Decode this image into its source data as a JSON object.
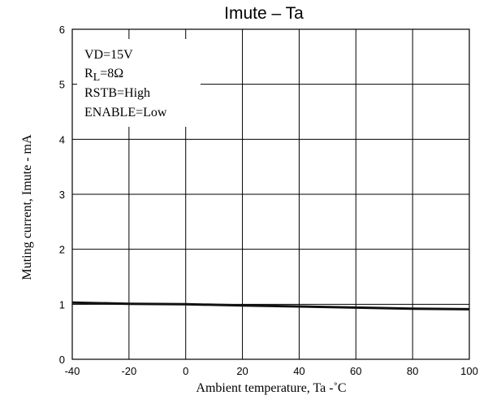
{
  "chart_data": {
    "type": "line",
    "title": "Imute – Ta",
    "xlabel": "Ambient temperature, Ta  -˚C",
    "ylabel": "Muting current, Imute  - mA",
    "xlim": [
      -40,
      100
    ],
    "ylim": [
      0,
      6
    ],
    "xticks": [
      "-40",
      "-20",
      "0",
      "20",
      "40",
      "60",
      "80",
      "100"
    ],
    "yticks": [
      "0",
      "1",
      "2",
      "3",
      "4",
      "5",
      "6"
    ],
    "grid": true,
    "conditions": {
      "vd": "VD=15V",
      "rl_main": "R",
      "rl_sub": "L",
      "rl_value": "=8Ω",
      "rstb": "RSTB=High",
      "enable": "ENABLE=Low"
    },
    "series": [
      {
        "x": [
          -40,
          -20,
          0,
          20,
          40,
          60,
          80,
          100
        ],
        "y": [
          1.03,
          1.01,
          1.0,
          0.98,
          0.96,
          0.94,
          0.92,
          0.91
        ]
      }
    ]
  }
}
